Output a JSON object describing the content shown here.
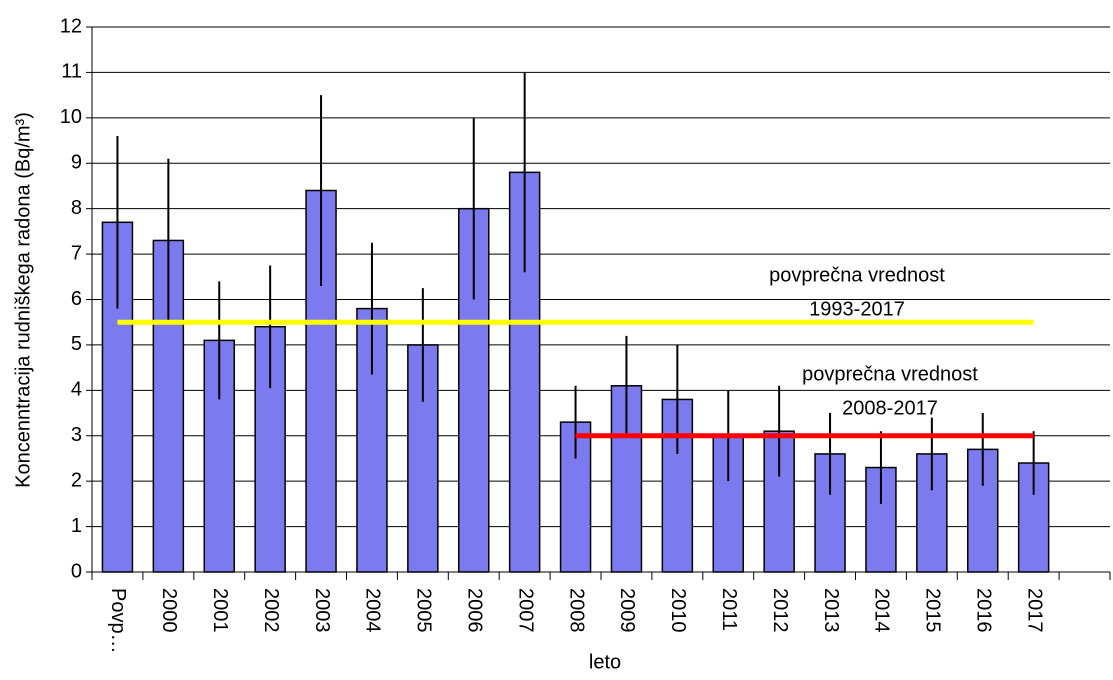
{
  "chart_data": {
    "type": "bar",
    "y_label": "Koncenntracija rudniškega radona (Bq/m³)",
    "x_label": "leto",
    "categories": [
      "Povp…",
      "2000",
      "2001",
      "2002",
      "2003",
      "2004",
      "2005",
      "2006",
      "2007",
      "2008",
      "2009",
      "2010",
      "2011",
      "2012",
      "2013",
      "2014",
      "2015",
      "2016",
      "2017",
      null
    ],
    "values": [
      7.7,
      7.3,
      5.1,
      5.4,
      8.4,
      5.8,
      5.0,
      8.0,
      8.8,
      3.3,
      4.1,
      3.8,
      3.0,
      3.1,
      2.6,
      2.3,
      2.6,
      2.7,
      2.4,
      null
    ],
    "errors": [
      1.9,
      1.8,
      1.3,
      1.35,
      2.1,
      1.45,
      1.25,
      2.0,
      2.2,
      0.8,
      1.1,
      1.2,
      1.0,
      1.0,
      0.9,
      0.8,
      0.8,
      0.8,
      0.7,
      null
    ],
    "color": "#7b7bef",
    "error_color": "#000000",
    "ylim": [
      0,
      12
    ],
    "yticks": [
      0,
      1,
      2,
      3,
      4,
      5,
      6,
      7,
      8,
      9,
      10,
      11,
      12
    ],
    "grid": true,
    "reference_lines": [
      {
        "value": 5.5,
        "color": "#ffff00",
        "from": "Povp…",
        "to": "2017",
        "label": [
          "povprečna vrednost",
          "1993-2017"
        ]
      },
      {
        "value": 3.0,
        "color": "#ff0000",
        "from": "2008",
        "to": "2017",
        "label": [
          "povprečna vrednost",
          "2008-2017"
        ]
      }
    ]
  }
}
